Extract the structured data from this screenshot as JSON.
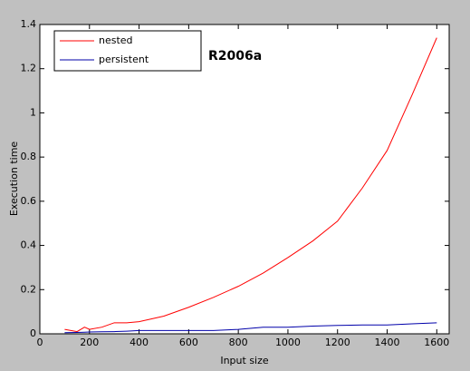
{
  "chart_data": {
    "type": "line",
    "x_label": "Input size",
    "y_label": "Execution time",
    "annotation": "R2006a",
    "xlim": [
      0,
      1650
    ],
    "xticks": [
      0,
      200,
      400,
      600,
      800,
      1000,
      1200,
      1400,
      1600
    ],
    "ylim": [
      0,
      1.4
    ],
    "yticks": [
      0,
      0.2,
      0.4,
      0.6,
      0.8,
      1,
      1.2,
      1.4
    ],
    "legend_position": "upper-left",
    "x": [
      100,
      150,
      180,
      200,
      250,
      300,
      350,
      400,
      500,
      600,
      700,
      800,
      900,
      1000,
      1100,
      1200,
      1300,
      1400,
      1500,
      1600
    ],
    "series": [
      {
        "name": "nested",
        "color": "#ff0000",
        "values": [
          0.02,
          0.01,
          0.03,
          0.02,
          0.03,
          0.05,
          0.05,
          0.055,
          0.08,
          0.12,
          0.165,
          0.215,
          0.275,
          0.345,
          0.42,
          0.51,
          0.66,
          0.83,
          1.08,
          1.34
        ]
      },
      {
        "name": "persistent",
        "color": "#0000aa",
        "values": [
          0.005,
          0.006,
          0.007,
          0.008,
          0.009,
          0.01,
          0.012,
          0.015,
          0.015,
          0.015,
          0.015,
          0.02,
          0.03,
          0.03,
          0.035,
          0.038,
          0.04,
          0.04,
          0.045,
          0.05
        ]
      }
    ]
  }
}
